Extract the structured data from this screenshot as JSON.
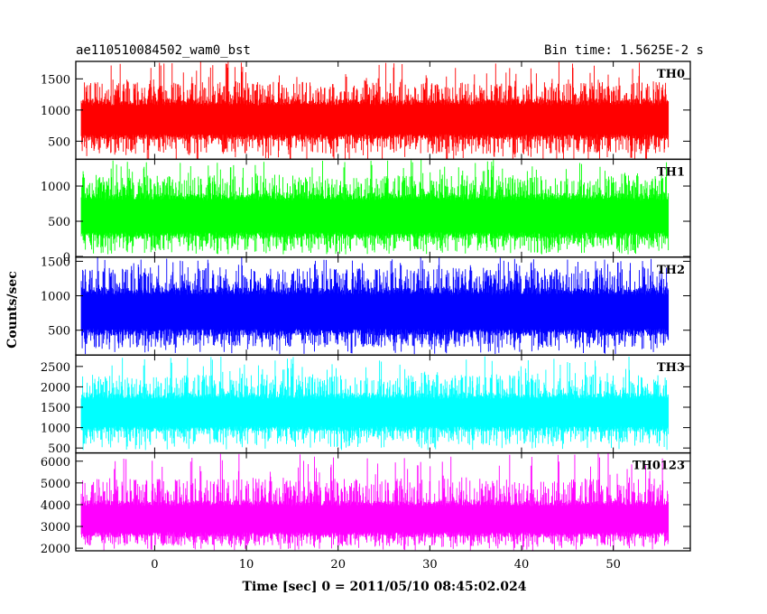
{
  "header": {
    "title": "ae110510084502_wam0_bst",
    "bin_time": "Bin time: 1.5625E-2 s"
  },
  "chart_data": {
    "type": "line",
    "xlabel": "Time [sec] 0 = 2011/05/10 08:45:02.024",
    "ylabel": "Counts/sec",
    "xlim": [
      -8.6,
      58.4
    ],
    "data_x_range": [
      -8.0,
      56.0
    ],
    "x_ticks": [
      0,
      10,
      20,
      30,
      40,
      50
    ],
    "x_tick_labels": [
      "0",
      "10",
      "20",
      "30",
      "40",
      "50"
    ],
    "grid": false,
    "panels": [
      {
        "label": "TH0",
        "color": "#ff0000",
        "ylim": [
          210,
          1780
        ],
        "y_ticks": [
          500,
          1000,
          1500
        ],
        "y_tick_labels": [
          "500",
          "1000",
          "1500"
        ],
        "baseline": 830,
        "band_low": 520,
        "band_high": 1180,
        "dip_typical": 300,
        "dip_min": 180,
        "spike_typical": 1450,
        "spike_max": 1780
      },
      {
        "label": "TH1",
        "color": "#00ff00",
        "ylim": [
          -10,
          1380
        ],
        "y_ticks": [
          0,
          500,
          1000
        ],
        "y_tick_labels": [
          "0",
          "500",
          "1000"
        ],
        "baseline": 560,
        "band_low": 250,
        "band_high": 900,
        "dip_typical": 80,
        "dip_min": 30,
        "spike_typical": 1150,
        "spike_max": 1380
      },
      {
        "label": "TH2",
        "color": "#0000ff",
        "ylim": [
          140,
          1560
        ],
        "y_ticks": [
          500,
          1000,
          1500
        ],
        "y_tick_labels": [
          "500",
          "1000",
          "1500"
        ],
        "baseline": 760,
        "band_low": 420,
        "band_high": 1120,
        "dip_typical": 250,
        "dip_min": 150,
        "spike_typical": 1400,
        "spike_max": 1560
      },
      {
        "label": "TH3",
        "color": "#00ffff",
        "ylim": [
          380,
          2780
        ],
        "y_ticks": [
          500,
          1000,
          1500,
          2000,
          2500
        ],
        "y_tick_labels": [
          "500",
          "1000",
          "1500",
          "2000",
          "2500"
        ],
        "baseline": 1350,
        "band_low": 900,
        "band_high": 1850,
        "dip_typical": 600,
        "dip_min": 450,
        "spike_typical": 2300,
        "spike_max": 2750
      },
      {
        "label": "TH0123",
        "color": "#ff00ff",
        "ylim": [
          1880,
          6380
        ],
        "y_ticks": [
          2000,
          3000,
          4000,
          5000,
          6000
        ],
        "y_tick_labels": [
          "2000",
          "3000",
          "4000",
          "5000",
          "6000"
        ],
        "baseline": 3300,
        "band_low": 2500,
        "band_high": 4200,
        "dip_typical": 2100,
        "dip_min": 1900,
        "spike_typical": 5200,
        "spike_max": 6400
      }
    ]
  }
}
